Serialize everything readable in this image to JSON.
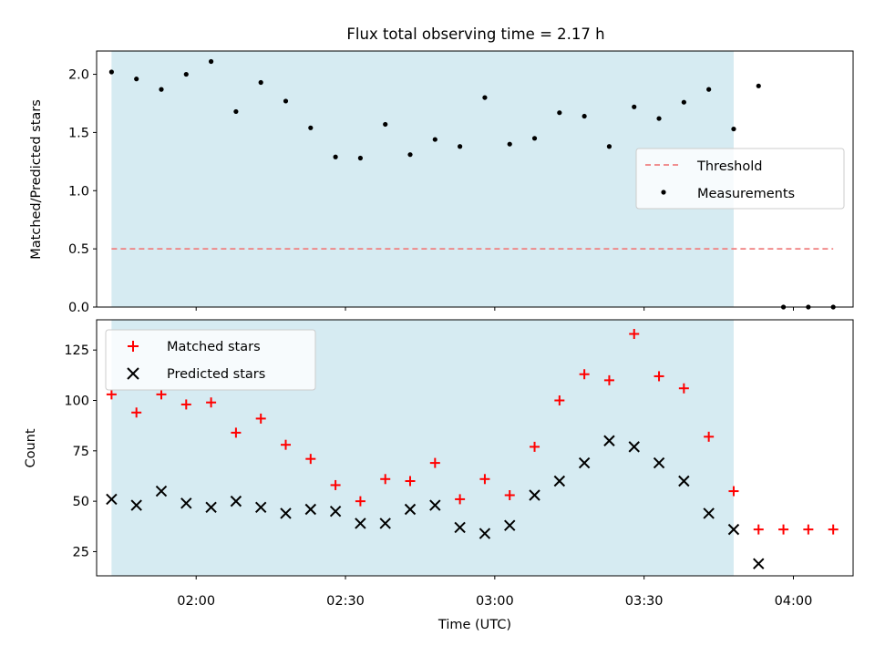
{
  "title": "Flux total observing time = 2.17 h",
  "colors": {
    "shade": "#add8e6",
    "threshold": "#f08080",
    "measurement": "#000000",
    "matched": "#ff0000",
    "predicted": "#000000"
  },
  "chart_data": [
    {
      "type": "scatter",
      "panel": "top",
      "title": "Flux total observing time = 2.17 h",
      "xlabel": "",
      "ylabel": "Matched/Predicted stars",
      "ylim": [
        0,
        2.2
      ],
      "yticks": [
        "0.0",
        "0.5",
        "1.0",
        "1.5",
        "2.0"
      ],
      "shaded_interval": [
        "01:43",
        "03:48"
      ],
      "legend_position": "center right",
      "series": [
        {
          "name": "Threshold",
          "style": "dashed-line",
          "x": [
            "01:43",
            "04:08"
          ],
          "y": [
            0.5,
            0.5
          ]
        },
        {
          "name": "Measurements",
          "style": "dot",
          "x": [
            "01:43",
            "01:48",
            "01:53",
            "01:58",
            "02:03",
            "02:08",
            "02:13",
            "02:18",
            "02:23",
            "02:28",
            "02:33",
            "02:38",
            "02:43",
            "02:48",
            "02:53",
            "02:58",
            "03:03",
            "03:08",
            "03:13",
            "03:18",
            "03:23",
            "03:28",
            "03:33",
            "03:38",
            "03:43",
            "03:48",
            "03:53",
            "03:58",
            "04:03",
            "04:08"
          ],
          "y": [
            2.02,
            1.96,
            1.87,
            2.0,
            2.11,
            1.68,
            1.93,
            1.77,
            1.54,
            1.29,
            1.28,
            1.57,
            1.31,
            1.44,
            1.38,
            1.8,
            1.4,
            1.45,
            1.67,
            1.64,
            1.38,
            1.72,
            1.62,
            1.76,
            1.87,
            1.53,
            1.9,
            0.0,
            0.0,
            0.0
          ]
        }
      ]
    },
    {
      "type": "scatter",
      "panel": "bottom",
      "xlabel": "Time (UTC)",
      "ylabel": "Count",
      "ylim": [
        13,
        140
      ],
      "yticks": [
        "25",
        "50",
        "75",
        "100",
        "125"
      ],
      "xticks": [
        "02:00",
        "02:30",
        "03:00",
        "03:30",
        "04:00"
      ],
      "shaded_interval": [
        "01:43",
        "03:48"
      ],
      "legend_position": "upper left",
      "series": [
        {
          "name": "Matched stars",
          "marker": "+",
          "x": [
            "01:43",
            "01:48",
            "01:53",
            "01:58",
            "02:03",
            "02:08",
            "02:13",
            "02:18",
            "02:23",
            "02:28",
            "02:33",
            "02:38",
            "02:43",
            "02:48",
            "02:53",
            "02:58",
            "03:03",
            "03:08",
            "03:13",
            "03:18",
            "03:23",
            "03:28",
            "03:33",
            "03:38",
            "03:43",
            "03:48",
            "03:53",
            "03:58",
            "04:03",
            "04:08"
          ],
          "y": [
            103,
            94,
            103,
            98,
            99,
            84,
            91,
            78,
            71,
            58,
            50,
            61,
            60,
            69,
            51,
            61,
            53,
            77,
            100,
            113,
            110,
            133,
            112,
            106,
            82,
            55,
            36,
            36,
            36,
            36
          ]
        },
        {
          "name": "Predicted stars",
          "marker": "x",
          "x": [
            "01:43",
            "01:48",
            "01:53",
            "01:58",
            "02:03",
            "02:08",
            "02:13",
            "02:18",
            "02:23",
            "02:28",
            "02:33",
            "02:38",
            "02:43",
            "02:48",
            "02:53",
            "02:58",
            "03:03",
            "03:08",
            "03:13",
            "03:18",
            "03:23",
            "03:28",
            "03:33",
            "03:38",
            "03:43",
            "03:48",
            "03:53"
          ],
          "y": [
            51,
            48,
            55,
            49,
            47,
            50,
            47,
            44,
            46,
            45,
            39,
            39,
            46,
            48,
            37,
            34,
            38,
            53,
            60,
            69,
            80,
            77,
            69,
            60,
            44,
            36,
            19
          ]
        }
      ]
    }
  ]
}
